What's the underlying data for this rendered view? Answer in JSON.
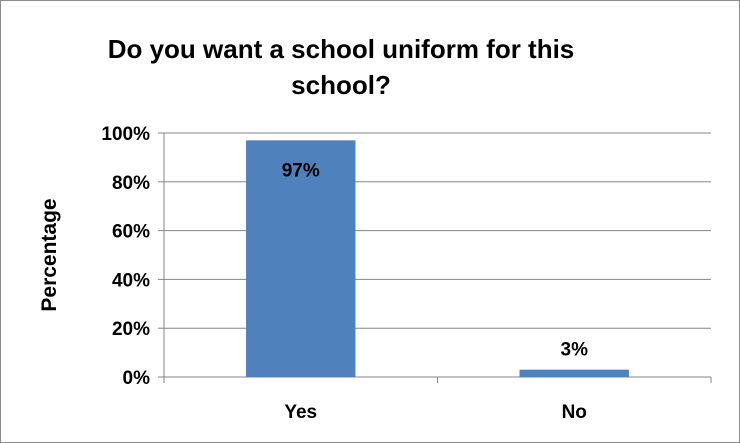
{
  "chart_data": {
    "type": "bar",
    "title": "Do you want a school uniform for this school?",
    "xlabel": "",
    "ylabel": "Percentage",
    "categories": [
      "Yes",
      "No"
    ],
    "values": [
      97,
      3
    ],
    "data_labels": [
      "97%",
      "3%"
    ],
    "ylim": [
      0,
      100
    ],
    "yticks": [
      0,
      20,
      40,
      60,
      80,
      100
    ],
    "ytick_labels": [
      "0%",
      "20%",
      "40%",
      "60%",
      "80%",
      "100%"
    ],
    "grid": true,
    "legend": "none",
    "bar_color": "#4f81bd",
    "grid_color": "#868686"
  }
}
